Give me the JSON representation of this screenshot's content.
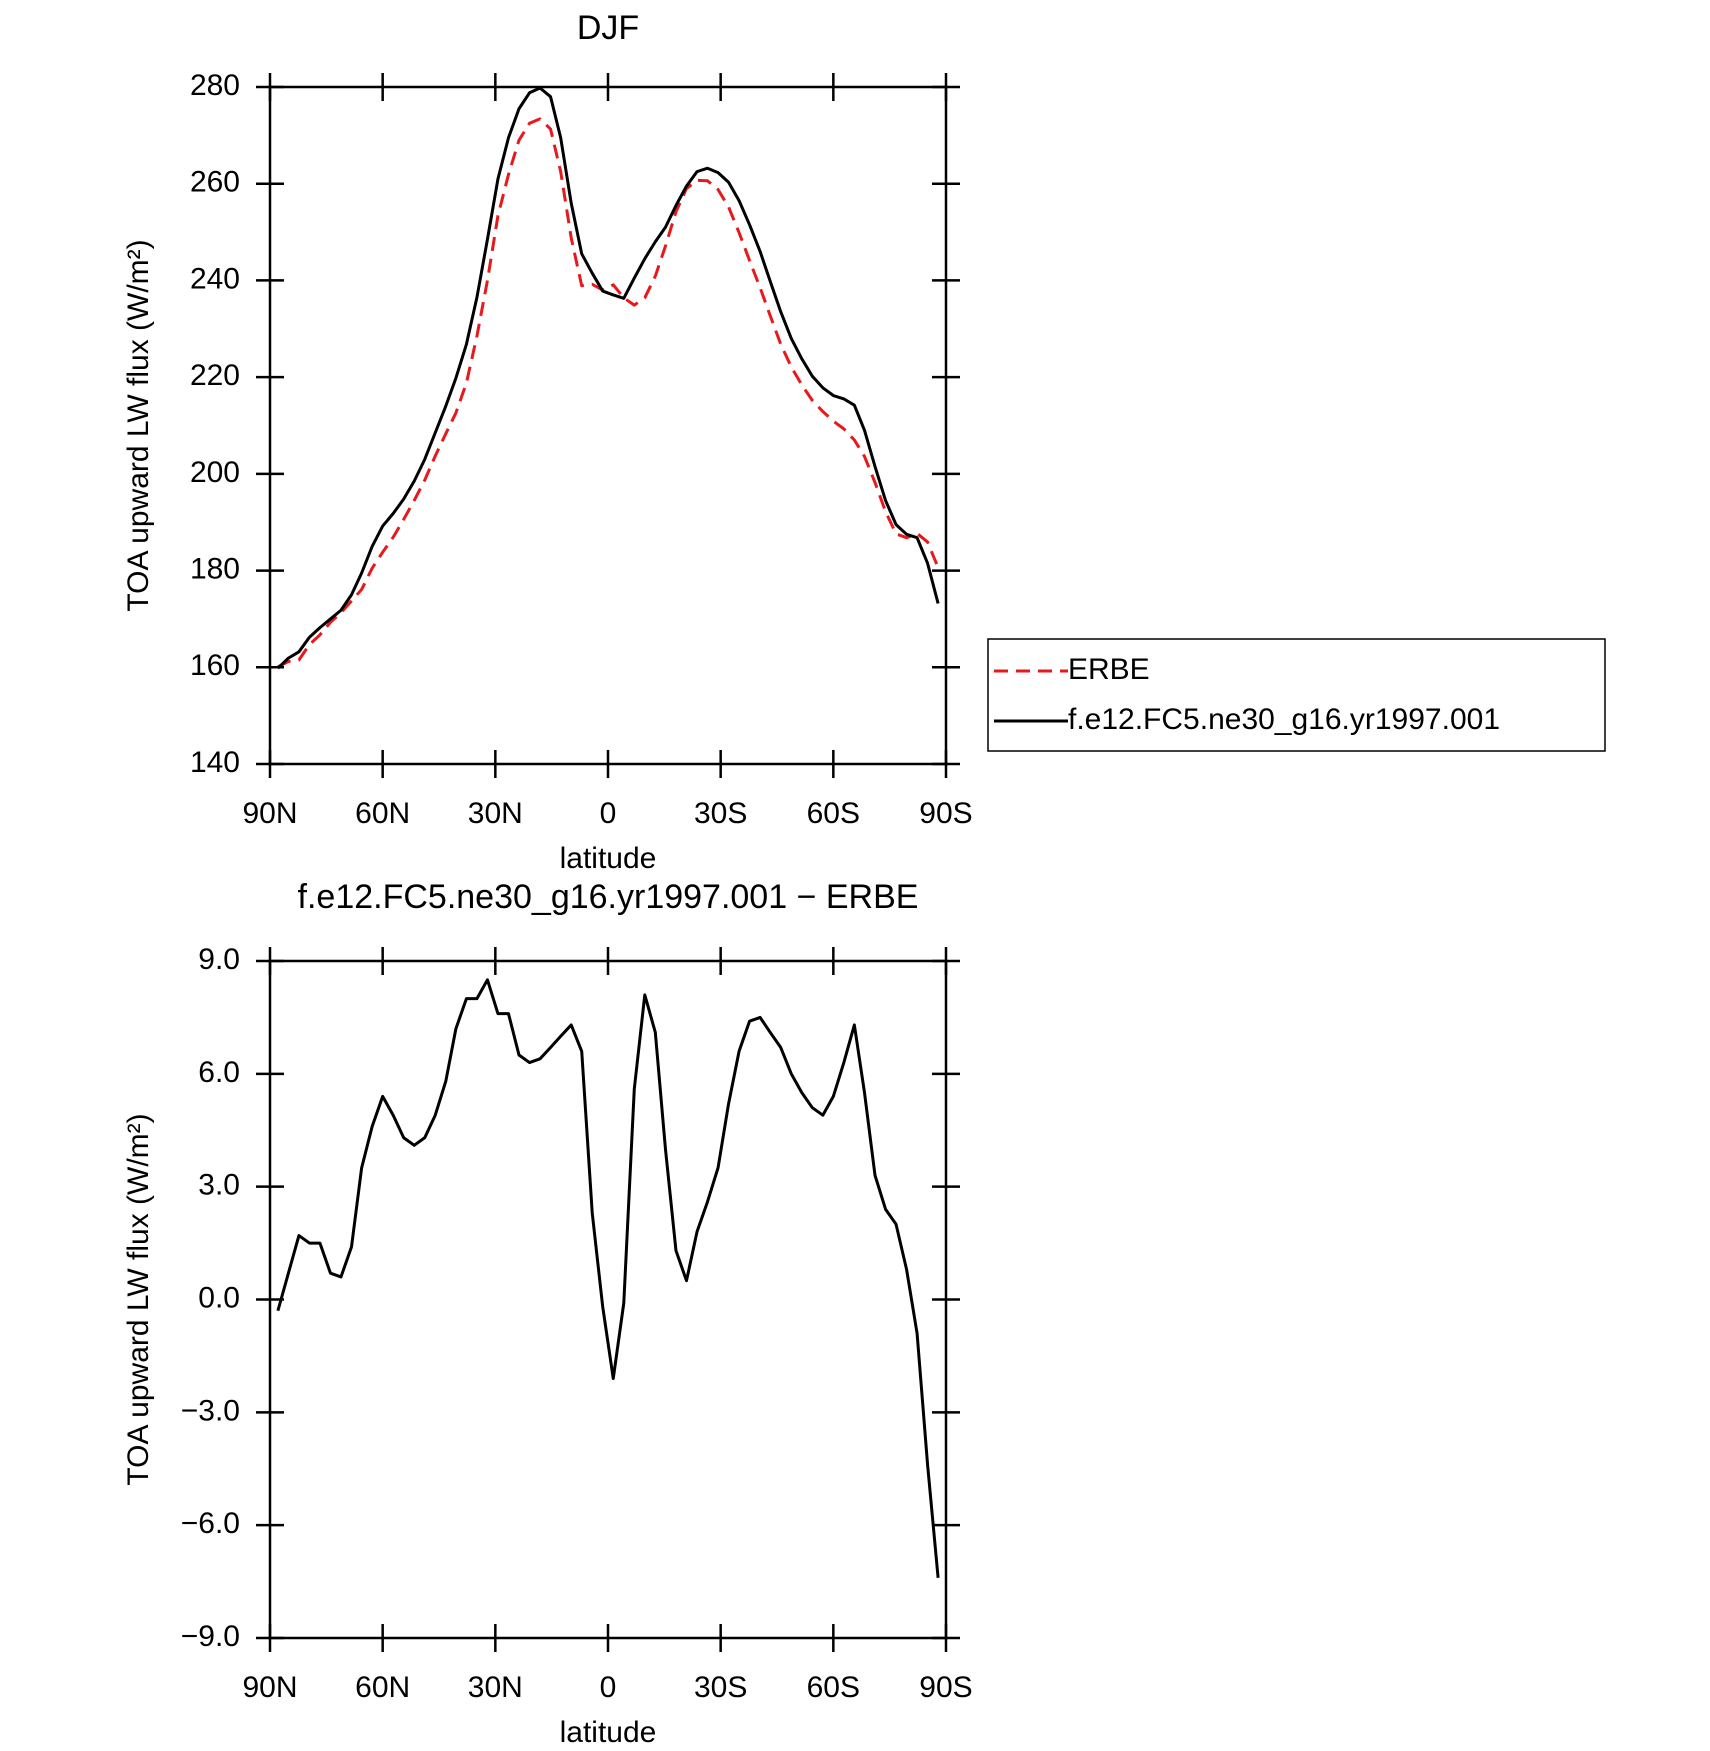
{
  "chart_data": [
    {
      "type": "line",
      "title": "DJF",
      "xlabel": "latitude",
      "ylabel": "TOA upward LW flux (W/m²)",
      "x": [
        87.9,
        85.1,
        82.3,
        79.5,
        76.7,
        73.9,
        71.1,
        68.3,
        65.6,
        62.8,
        60.0,
        57.2,
        54.4,
        51.6,
        48.8,
        46.0,
        43.2,
        40.5,
        37.7,
        34.9,
        32.1,
        29.3,
        26.5,
        23.7,
        20.9,
        18.1,
        15.3,
        12.6,
        9.8,
        7.0,
        4.2,
        1.4,
        -1.4,
        -4.2,
        -7.0,
        -9.8,
        -12.6,
        -15.3,
        -18.1,
        -20.9,
        -23.7,
        -26.5,
        -29.3,
        -32.1,
        -34.9,
        -37.7,
        -40.5,
        -43.2,
        -46.0,
        -48.8,
        -51.6,
        -54.4,
        -57.2,
        -60.0,
        -62.8,
        -65.6,
        -68.3,
        -71.1,
        -73.9,
        -76.7,
        -79.5,
        -82.3,
        -85.1,
        -87.9
      ],
      "series": [
        {
          "name": "ERBE",
          "color": "#e8191c",
          "dash": true,
          "values": [
            160.1,
            161.2,
            161.5,
            164.7,
            166.7,
            169.3,
            171.3,
            173.7,
            176.1,
            180.5,
            183.8,
            186.9,
            190.6,
            194.5,
            198.7,
            203.7,
            208.3,
            212.6,
            218.8,
            228.5,
            240.0,
            253.4,
            261.9,
            269.0,
            272.5,
            273.4,
            271.3,
            262.5,
            248.8,
            238.9,
            239.2,
            238.0,
            239.1,
            236.4,
            234.9,
            236.4,
            240.9,
            247.1,
            254.2,
            259.0,
            260.7,
            260.6,
            258.8,
            255.2,
            249.9,
            244.1,
            238.5,
            232.7,
            226.8,
            222.1,
            218.4,
            215.2,
            212.9,
            210.9,
            209.3,
            207.0,
            203.6,
            198.2,
            192.2,
            187.6,
            186.8,
            187.7,
            185.9,
            180.6
          ]
        },
        {
          "name": "f.e12.FC5.ne30_g16.yr1997.001",
          "color": "#000000",
          "dash": false,
          "values": [
            159.8,
            161.9,
            163.2,
            166.2,
            168.2,
            170.0,
            171.8,
            175.0,
            179.5,
            185.0,
            189.2,
            191.8,
            194.8,
            198.5,
            203.0,
            208.5,
            214.0,
            219.8,
            226.8,
            236.5,
            248.5,
            261.0,
            269.5,
            275.5,
            278.8,
            279.8,
            278.0,
            269.5,
            256.0,
            245.5,
            241.5,
            237.8,
            237.0,
            236.3,
            240.5,
            244.5,
            248.0,
            251.0,
            255.5,
            259.5,
            262.5,
            263.2,
            262.3,
            260.3,
            256.5,
            251.5,
            246.0,
            239.8,
            233.5,
            228.0,
            223.8,
            220.2,
            217.8,
            216.2,
            215.5,
            214.2,
            209.0,
            201.5,
            194.5,
            189.5,
            187.5,
            186.8,
            181.5,
            173.2
          ]
        }
      ],
      "xlim": [
        90,
        -90
      ],
      "xticks": [
        {
          "value": 90,
          "label": "90N"
        },
        {
          "value": 60,
          "label": "60N"
        },
        {
          "value": 30,
          "label": "30N"
        },
        0,
        {
          "value": -30,
          "label": "30S"
        },
        {
          "value": -60,
          "label": "60S"
        },
        {
          "value": -90,
          "label": "90S"
        }
      ],
      "ylim": [
        140,
        280
      ],
      "yticks": [
        140,
        160,
        180,
        200,
        220,
        240,
        260,
        280
      ],
      "legend": "outside-right"
    },
    {
      "type": "line",
      "title": "f.e12.FC5.ne30_g16.yr1997.001 − ERBE",
      "xlabel": "latitude",
      "ylabel": "TOA upward LW flux (W/m²)",
      "x": [
        87.9,
        85.1,
        82.3,
        79.5,
        76.7,
        73.9,
        71.1,
        68.3,
        65.6,
        62.8,
        60.0,
        57.2,
        54.4,
        51.6,
        48.8,
        46.0,
        43.2,
        40.5,
        37.7,
        34.9,
        32.1,
        29.3,
        26.5,
        23.7,
        20.9,
        18.1,
        15.3,
        12.6,
        9.8,
        7.0,
        4.2,
        1.4,
        -1.4,
        -4.2,
        -7.0,
        -9.8,
        -12.6,
        -15.3,
        -18.1,
        -20.9,
        -23.7,
        -26.5,
        -29.3,
        -32.1,
        -34.9,
        -37.7,
        -40.5,
        -43.2,
        -46.0,
        -48.8,
        -51.6,
        -54.4,
        -57.2,
        -60.0,
        -62.8,
        -65.6,
        -68.3,
        -71.1,
        -73.9,
        -76.7,
        -79.5,
        -82.3,
        -85.1,
        -87.9
      ],
      "series": [
        {
          "color": "#000000",
          "dash": false,
          "values": [
            -0.3,
            0.7,
            1.7,
            1.5,
            1.5,
            0.7,
            0.6,
            1.4,
            3.5,
            4.6,
            5.4,
            4.9,
            4.3,
            4.1,
            4.3,
            4.9,
            5.8,
            7.2,
            8.0,
            8.0,
            8.5,
            7.6,
            7.6,
            6.5,
            6.3,
            6.4,
            6.7,
            7.0,
            7.3,
            6.6,
            2.3,
            -0.2,
            -2.1,
            -0.1,
            5.6,
            8.1,
            7.1,
            4.0,
            1.3,
            0.5,
            1.8,
            2.6,
            3.5,
            5.2,
            6.6,
            7.4,
            7.5,
            7.1,
            6.7,
            6.0,
            5.5,
            5.1,
            4.9,
            5.4,
            6.3,
            7.3,
            5.5,
            3.3,
            2.4,
            2.0,
            0.8,
            -0.9,
            -4.4,
            -7.4
          ]
        }
      ],
      "xlim": [
        90,
        -90
      ],
      "xticks": [
        {
          "value": 90,
          "label": "90N"
        },
        {
          "value": 60,
          "label": "60N"
        },
        {
          "value": 30,
          "label": "30N"
        },
        0,
        {
          "value": -30,
          "label": "30S"
        },
        {
          "value": -60,
          "label": "60S"
        },
        {
          "value": -90,
          "label": "90S"
        }
      ],
      "ylim": [
        -9,
        9
      ],
      "yticks": [
        {
          "value": -9,
          "label": "−9.0"
        },
        {
          "value": -6,
          "label": "−6.0"
        },
        {
          "value": -3,
          "label": "−3.0"
        },
        {
          "value": 0,
          "label": "0.0"
        },
        {
          "value": 3,
          "label": "3.0"
        },
        {
          "value": 6,
          "label": "6.0"
        },
        {
          "value": 9,
          "label": "9.0"
        }
      ]
    }
  ]
}
